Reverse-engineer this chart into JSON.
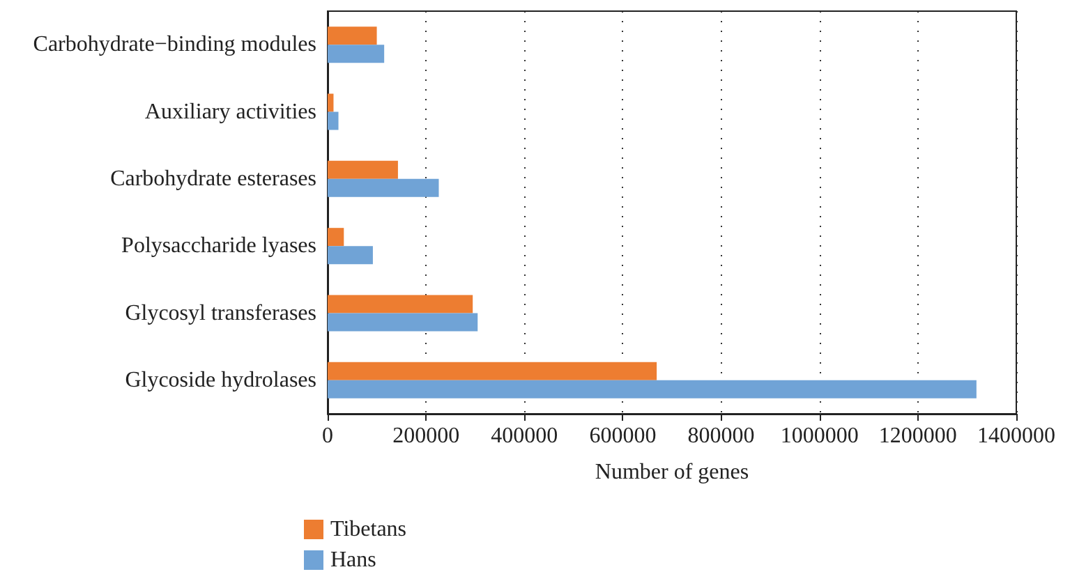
{
  "chart_data": {
    "type": "bar",
    "orientation": "horizontal",
    "xlabel": "Number of genes",
    "categories": [
      "Carbohydrate−binding modules",
      "Auxiliary activities",
      "Carbohydrate esterases",
      "Polysaccharide lyases",
      "Glycosyl transferases",
      "Glycoside hydrolases"
    ],
    "series": [
      {
        "name": "Tibetans",
        "color": "#ed7d31",
        "values": [
          100000,
          12000,
          143000,
          33000,
          295000,
          669000
        ]
      },
      {
        "name": "Hans",
        "color": "#70a3d6",
        "values": [
          115000,
          22000,
          226000,
          92000,
          305000,
          1319000
        ]
      }
    ],
    "xlim": [
      0,
      1400000
    ],
    "xticks": [
      0,
      200000,
      400000,
      600000,
      800000,
      1000000,
      1200000,
      1400000
    ],
    "grid": "x",
    "legend": "bottom left"
  }
}
